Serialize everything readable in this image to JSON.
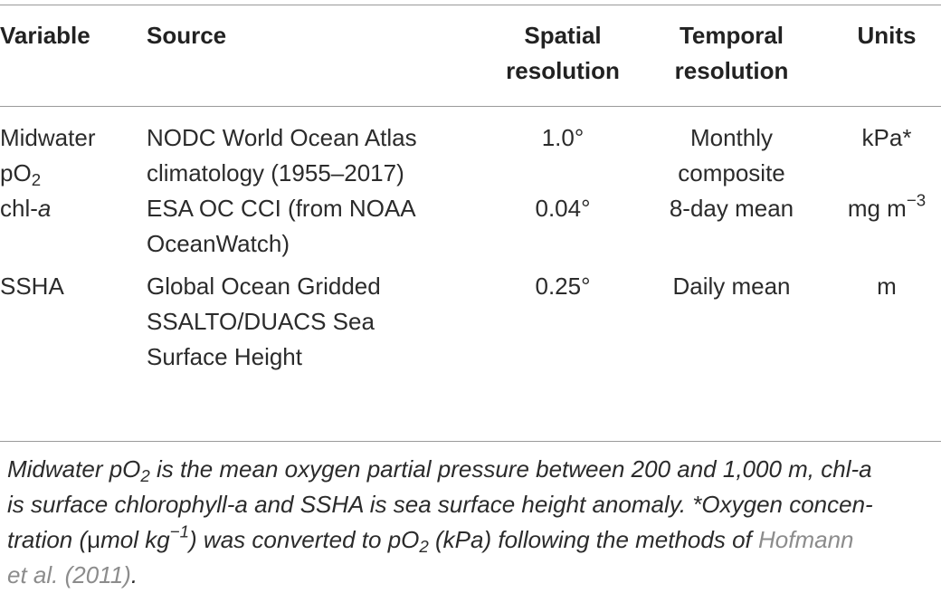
{
  "headers": {
    "variable": "Variable",
    "source": "Source",
    "spatial_line1": "Spatial",
    "spatial_line2": "resolution",
    "temporal_line1": "Temporal",
    "temporal_line2": "resolution",
    "units": "Units"
  },
  "rows": [
    {
      "variable_line1": "Midwater",
      "variable_base": "pO",
      "variable_sub": "2",
      "source_line1": "NODC World Ocean Atlas",
      "source_line2": "climatology (1955–2017)",
      "spatial": "1.0°",
      "temporal_line1": "Monthly",
      "temporal_line2": "composite",
      "units": "kPa*"
    },
    {
      "variable_prefix": "chl-",
      "variable_italic": "a",
      "source_line1": "ESA OC CCI (from NOAA",
      "source_line2": "OceanWatch)",
      "spatial": "0.04°",
      "temporal": "8-day mean",
      "units_base": "mg m",
      "units_sup": "−3"
    },
    {
      "variable": "SSHA",
      "source_line1": "Global Ocean Gridded",
      "source_line2": "SSALTO/DUACS Sea",
      "source_line3": "Surface Height",
      "spatial": "0.25°",
      "temporal": "Daily mean",
      "units": "m"
    }
  ],
  "footnote": {
    "p1": "Midwater pO",
    "p1_sub": "2",
    "p2": " is the mean oxygen partial pressure between 200 and 1,000 m, chl-a",
    "p3": "is surface chlorophyll-a and SSHA is sea surface height anomaly. *Oxygen concen-",
    "p4": "tration (",
    "p4_mu": "μ",
    "p4b": "mol kg",
    "p4_sup": "−1",
    "p5": ") was converted to pO",
    "p5_sub": "2",
    "p6": " (kPa) following the methods of ",
    "ref1": "Hofmann",
    "ref2": "et al. (2011)",
    "end": "."
  },
  "colors": {
    "text": "#2b2b2b",
    "rule": "#9a9a9a",
    "reference_link": "#8c8c8c"
  }
}
